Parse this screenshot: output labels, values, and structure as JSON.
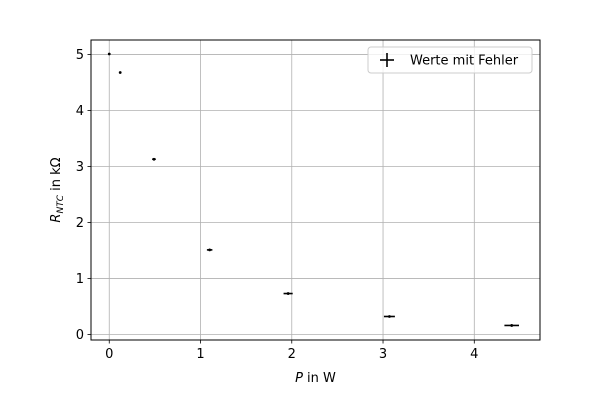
{
  "chart_data": {
    "type": "scatter",
    "title": "",
    "xlabel": "P in W",
    "ylabel": "R_NTC in kΩ",
    "xlim": [
      -0.2,
      4.72
    ],
    "ylim": [
      -0.1,
      5.26
    ],
    "xticks": [
      0,
      1,
      2,
      3,
      4
    ],
    "yticks": [
      0,
      1,
      2,
      3,
      4,
      5
    ],
    "xtick_labels": [
      "0",
      "1",
      "2",
      "3",
      "4"
    ],
    "ytick_labels": [
      "0",
      "1",
      "2",
      "3",
      "4",
      "5"
    ],
    "grid": true,
    "legend_position": "top-right",
    "series": [
      {
        "name": "Werte mit Fehler",
        "color": "#000000",
        "marker": "errorbar",
        "points": [
          {
            "x": 0.0,
            "y": 5.01,
            "xerr": 0.0,
            "yerr": 0.01
          },
          {
            "x": 0.12,
            "y": 4.68,
            "xerr": 0.005,
            "yerr": 0.01
          },
          {
            "x": 0.49,
            "y": 3.13,
            "xerr": 0.02,
            "yerr": 0.01
          },
          {
            "x": 1.1,
            "y": 1.51,
            "xerr": 0.03,
            "yerr": 0.01
          },
          {
            "x": 1.96,
            "y": 0.73,
            "xerr": 0.05,
            "yerr": 0.01
          },
          {
            "x": 3.07,
            "y": 0.32,
            "xerr": 0.06,
            "yerr": 0.01
          },
          {
            "x": 4.41,
            "y": 0.16,
            "xerr": 0.08,
            "yerr": 0.01
          }
        ]
      }
    ]
  }
}
